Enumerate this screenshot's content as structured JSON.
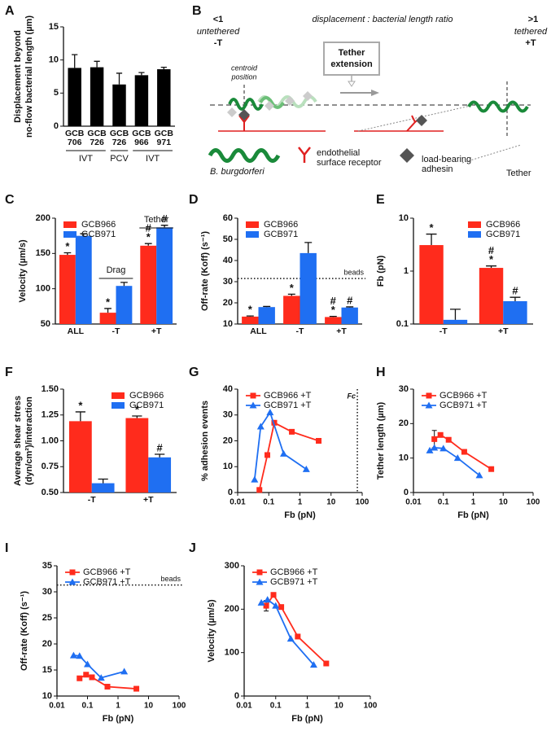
{
  "diagram": {
    "panel": "B",
    "ratio_low": "<1",
    "ratio_label": "displacement : bacterial length ratio",
    "ratio_high": ">1",
    "untethered": "untethered",
    "minus_t": "-T",
    "tethered": "tethered",
    "plus_t": "+T",
    "centroid": [
      "centroid",
      "position"
    ],
    "tether_extension": [
      "Tether",
      "extension"
    ],
    "bacterium": "B. burgdorferi",
    "receptor": [
      "endothelial",
      "surface receptor"
    ],
    "adhesin": [
      "load-bearing",
      "adhesin"
    ],
    "tether": "Tether"
  },
  "chart_data": [
    {
      "panel": "A",
      "type": "bar",
      "ylabel": [
        "Displacement beyond",
        "no-flow bacterial length (µm)"
      ],
      "categories": [
        "GCB 706",
        "GCB 726",
        "GCB 726",
        "GCB 966",
        "GCB 971"
      ],
      "values": [
        8.8,
        8.9,
        6.3,
        7.7,
        8.6
      ],
      "errors": [
        2.0,
        0.9,
        1.7,
        0.4,
        0.3
      ],
      "color": "#000000",
      "groups": [
        "IVT",
        "PCV",
        "IVT"
      ],
      "ylim": [
        0,
        15
      ],
      "yticks": [
        0,
        5,
        10,
        15
      ]
    },
    {
      "panel": "C",
      "type": "bar",
      "ylabel": "Velocity (µm/s)",
      "categories": [
        "ALL",
        "-T",
        "+T"
      ],
      "series": [
        {
          "name": "GCB966",
          "color": "#ff2b1c",
          "values": [
            148,
            66,
            161
          ],
          "errors": [
            3,
            6,
            3
          ],
          "sig": [
            [
              "*"
            ],
            [
              "*"
            ],
            [
              "#",
              "*"
            ]
          ]
        },
        {
          "name": "GCB971",
          "color": "#1f6ff2",
          "values": [
            175,
            104,
            187
          ],
          "errors": [
            3,
            5,
            3
          ],
          "sig": [
            [],
            [],
            [
              "#"
            ]
          ]
        }
      ],
      "annotations": [
        {
          "text": "Drag",
          "category": "-T"
        },
        {
          "text": "Tether",
          "category": "+T"
        }
      ],
      "ylim": [
        50,
        200
      ],
      "yticks": [
        50,
        100,
        150,
        200
      ],
      "legend": "upper left"
    },
    {
      "panel": "D",
      "type": "bar",
      "ylabel": "Off-rate (Koff) (s⁻¹)",
      "categories": [
        "ALL",
        "-T",
        "+T"
      ],
      "series": [
        {
          "name": "GCB966",
          "color": "#ff2b1c",
          "values": [
            13.5,
            23.3,
            13.3
          ],
          "errors": [
            0.3,
            0.8,
            0.3
          ],
          "sig": [
            [
              "*"
            ],
            [
              "*"
            ],
            [
              "#",
              "*"
            ]
          ]
        },
        {
          "name": "GCB971",
          "color": "#1f6ff2",
          "values": [
            18,
            43.5,
            17.8
          ],
          "errors": [
            0.3,
            5,
            0.3
          ],
          "sig": [
            [],
            [],
            [
              "#"
            ]
          ]
        }
      ],
      "hline": {
        "value": 31.5,
        "label": "beads"
      },
      "ylim": [
        10,
        60
      ],
      "yticks": [
        10,
        20,
        30,
        40,
        50,
        60
      ],
      "legend": "upper left"
    },
    {
      "panel": "E",
      "type": "bar",
      "ylabel": "Fb (pN)",
      "ylog": true,
      "categories": [
        "-T",
        "+T"
      ],
      "series": [
        {
          "name": "GCB966",
          "color": "#ff2b1c",
          "values": [
            3.1,
            1.15
          ],
          "errors": [
            1.9,
            0.1
          ],
          "sig": [
            [
              "*"
            ],
            [
              "#",
              "*"
            ]
          ]
        },
        {
          "name": "GCB971",
          "color": "#1f6ff2",
          "values": [
            0.12,
            0.27
          ],
          "errors": [
            0.07,
            0.05
          ],
          "sig": [
            [],
            [
              "#"
            ]
          ]
        }
      ],
      "ylim": [
        0.1,
        10
      ],
      "yticks": [
        0.1,
        1,
        10
      ],
      "legend": "upper right"
    },
    {
      "panel": "F",
      "type": "bar",
      "ylabel": [
        "Average shear stress",
        "(dyn/cm²)/interaction"
      ],
      "categories": [
        "-T",
        "+T"
      ],
      "series": [
        {
          "name": "GCB966",
          "color": "#ff2b1c",
          "values": [
            1.19,
            1.22
          ],
          "errors": [
            0.09,
            0.02
          ],
          "sig": [
            [
              "*"
            ],
            [
              "*"
            ]
          ]
        },
        {
          "name": "GCB971",
          "color": "#1f6ff2",
          "values": [
            0.59,
            0.84
          ],
          "errors": [
            0.04,
            0.03
          ],
          "sig": [
            [],
            [
              "#"
            ]
          ]
        }
      ],
      "ylim": [
        0.5,
        1.5
      ],
      "yticks": [
        {
          "value": 0.5,
          "label": "0.50"
        },
        {
          "value": 0.75,
          "label": "0.75"
        },
        {
          "value": 1,
          "label": "1.00"
        },
        {
          "value": 1.25,
          "label": "1.25"
        },
        {
          "value": 1.5,
          "label": "1.50"
        }
      ],
      "legend": "upper right"
    },
    {
      "panel": "G",
      "type": "line",
      "ylabel": "% adhesion events",
      "xlabel": "Fb (pN)",
      "xlog": true,
      "series": [
        {
          "name": "GCB966 +T",
          "color": "#ff2b1c",
          "marker": "square",
          "x": [
            0.05,
            0.09,
            0.15,
            0.55,
            4
          ],
          "values": [
            1,
            14.5,
            27,
            23.5,
            20
          ]
        },
        {
          "name": "GCB971 +T",
          "color": "#1f6ff2",
          "marker": "triangle",
          "x": [
            0.035,
            0.055,
            0.11,
            0.3,
            1.6
          ],
          "values": [
            5,
            25.5,
            31,
            15,
            9
          ]
        }
      ],
      "vline": {
        "value": 70,
        "label": "Fc"
      },
      "xlim": [
        0.01,
        100
      ],
      "xticks": [
        0.01,
        0.1,
        1,
        10,
        100
      ],
      "ylim": [
        0,
        40
      ],
      "yticks": [
        0,
        10,
        20,
        30,
        40
      ],
      "legend": "upper left"
    },
    {
      "panel": "H",
      "type": "line",
      "ylabel": "Tether length (µm)",
      "xlabel": "Fb (pN)",
      "xlog": true,
      "series": [
        {
          "name": "GCB966 +T",
          "color": "#ff2b1c",
          "marker": "square",
          "x": [
            0.05,
            0.08,
            0.15,
            0.5,
            4
          ],
          "values": [
            15.5,
            16.7,
            15.3,
            11.8,
            6.8
          ],
          "errors": [
            2.5,
            null,
            null,
            null,
            null
          ]
        },
        {
          "name": "GCB971 +T",
          "color": "#1f6ff2",
          "marker": "triangle",
          "x": [
            0.035,
            0.05,
            0.1,
            0.3,
            1.6
          ],
          "values": [
            12.2,
            13,
            12.8,
            10,
            5
          ]
        }
      ],
      "xlim": [
        0.01,
        100
      ],
      "xticks": [
        0.01,
        0.1,
        1,
        10,
        100
      ],
      "ylim": [
        0,
        30
      ],
      "yticks": [
        0,
        10,
        20,
        30
      ],
      "legend": "upper left"
    },
    {
      "panel": "I",
      "type": "line",
      "ylabel": "Off-rate (Koff) (s⁻¹)",
      "xlabel": "Fb (pN)",
      "xlog": true,
      "series": [
        {
          "name": "GCB966 +T",
          "color": "#ff2b1c",
          "marker": "square",
          "x": [
            0.055,
            0.09,
            0.14,
            0.45,
            4
          ],
          "values": [
            13.4,
            14.1,
            13.6,
            11.8,
            11.4
          ]
        },
        {
          "name": "GCB971 +T",
          "color": "#1f6ff2",
          "marker": "triangle",
          "x": [
            0.035,
            0.055,
            0.1,
            0.28,
            1.6
          ],
          "values": [
            17.8,
            17.7,
            16.1,
            13.5,
            14.7
          ]
        }
      ],
      "hline": {
        "value": 31.3,
        "label": "beads"
      },
      "xlim": [
        0.01,
        100
      ],
      "xticks": [
        0.01,
        0.1,
        1,
        10,
        100
      ],
      "ylim": [
        10,
        35
      ],
      "yticks": [
        10,
        15,
        20,
        25,
        30,
        35
      ],
      "legend": "upper left"
    },
    {
      "panel": "J",
      "type": "line",
      "ylabel": "Velocity (µm/s)",
      "xlabel": "Fb (pN)",
      "xlog": true,
      "series": [
        {
          "name": "GCB966 +T",
          "color": "#ff2b1c",
          "marker": "square",
          "x": [
            0.05,
            0.085,
            0.15,
            0.5,
            4
          ],
          "values": [
            208,
            233,
            205,
            137,
            75
          ],
          "errors": [
            12,
            null,
            null,
            null,
            null
          ]
        },
        {
          "name": "GCB971 +T",
          "color": "#1f6ff2",
          "marker": "triangle",
          "x": [
            0.035,
            0.055,
            0.1,
            0.3,
            1.6
          ],
          "values": [
            215,
            222,
            208,
            132,
            72
          ]
        }
      ],
      "xlim": [
        0.01,
        100
      ],
      "xticks": [
        0.01,
        0.1,
        1,
        10,
        100
      ],
      "ylim": [
        0,
        300
      ],
      "yticks": [
        0,
        100,
        200,
        300
      ],
      "legend": "upper left"
    }
  ]
}
